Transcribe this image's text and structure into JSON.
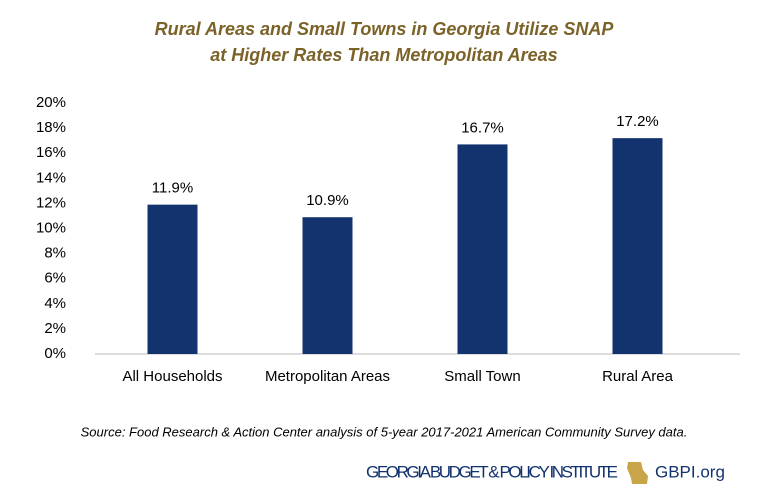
{
  "chart_data": {
    "type": "bar",
    "title": [
      "Rural Areas and Small Towns in Georgia Utilize SNAP",
      "at Higher Rates Than Metropolitan Areas"
    ],
    "categories": [
      "All Households",
      "Metropolitan Areas",
      "Small Town",
      "Rural Area"
    ],
    "values": [
      11.9,
      10.9,
      16.7,
      17.2
    ],
    "value_labels": [
      "11.9%",
      "10.9%",
      "16.7%",
      "17.2%"
    ],
    "color": "#12336e",
    "ylim": [
      0,
      20
    ],
    "yticks": [
      {
        "value": 0,
        "label": "0%"
      },
      {
        "value": 2,
        "label": "2%"
      },
      {
        "value": 4,
        "label": "4%"
      },
      {
        "value": 6,
        "label": "6%"
      },
      {
        "value": 8,
        "label": "8%"
      },
      {
        "value": 10,
        "label": "10%"
      },
      {
        "value": 12,
        "label": "12%"
      },
      {
        "value": 14,
        "label": "14%"
      },
      {
        "value": 16,
        "label": "16%"
      },
      {
        "value": 18,
        "label": "18%"
      },
      {
        "value": 20,
        "label": "20%"
      }
    ],
    "grid": false,
    "source": "Source: Food Research & Action Center analysis of 5-year 2017-2021 American Community Survey data."
  },
  "footer": {
    "organization": "GEORGIA BUDGET & POLICY INSTITUTE",
    "website": "GBPI.org"
  }
}
